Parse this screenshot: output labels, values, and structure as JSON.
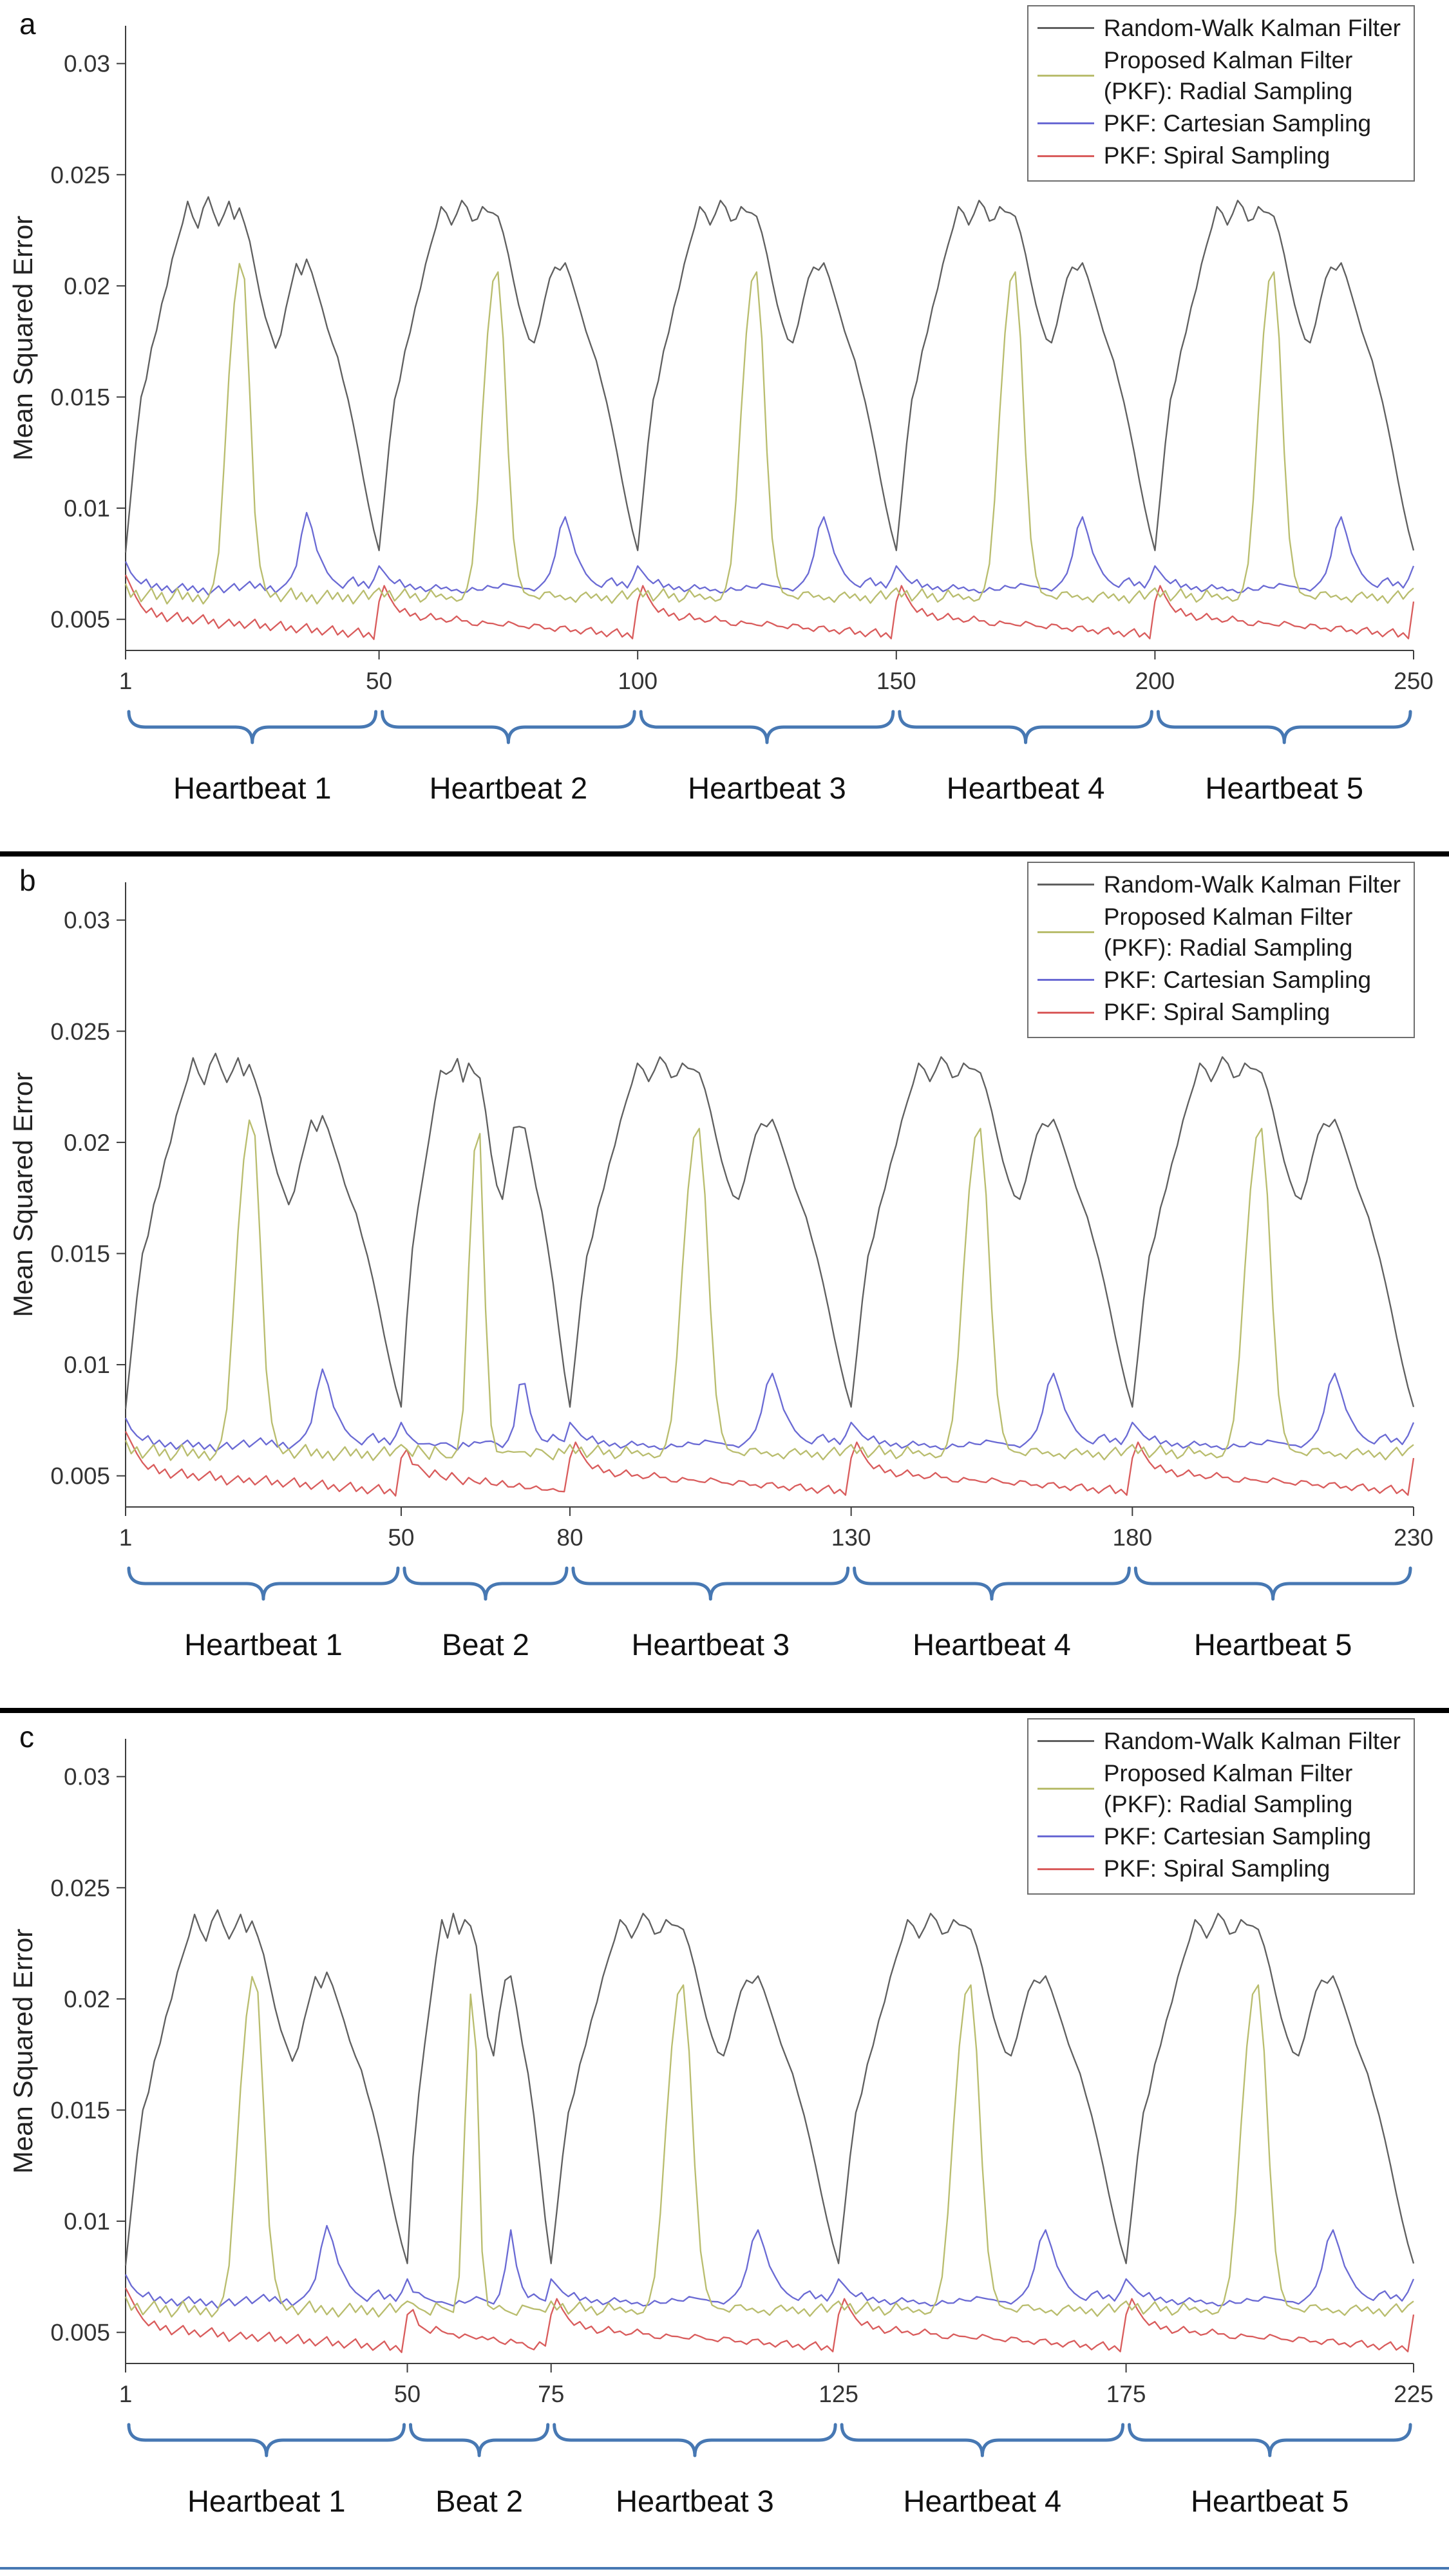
{
  "figure": {
    "background": "#ffffff",
    "separator_color": "#000000",
    "brace_color": "#4778b3",
    "axis_color": "#3c3c3c",
    "tick_label_color": "#333333",
    "panel_letters": [
      "a",
      "b",
      "c"
    ],
    "ylabel": "Mean Squared Error",
    "legend": [
      {
        "label": "Random-Walk Kalman Filter",
        "series": "random_walk"
      },
      {
        "label": "Proposed Kalman Filter (PKF): Radial Sampling",
        "lines": [
          "Proposed Kalman Filter",
          "(PKF): Radial Sampling"
        ],
        "series": "radial"
      },
      {
        "label": "PKF: Cartesian Sampling",
        "series": "cartesian"
      },
      {
        "label": "PKF: Spiral Sampling",
        "series": "spiral"
      }
    ]
  },
  "chart_data": {
    "type": "line",
    "title": "",
    "xlabel": "",
    "ylabel": "Mean Squared Error",
    "ylim": [
      0.0036,
      0.0317
    ],
    "yticks": [
      0.005,
      0.01,
      0.015,
      0.02,
      0.025,
      0.03
    ],
    "grid": false,
    "legend_position": "top-right",
    "pattern_note": "heartbeat_pattern gives MSE over one heartbeat (50 samples); each series repeats this pattern across every bracketed segment, time-scaled to the segment length.",
    "series": [
      {
        "id": "random_walk",
        "name": "Random-Walk Kalman Filter",
        "color": "#5f5f5f",
        "heartbeat_pattern": [
          0.008,
          0.0105,
          0.013,
          0.015,
          0.0158,
          0.0172,
          0.018,
          0.0192,
          0.02,
          0.0212,
          0.022,
          0.0228,
          0.0238,
          0.0231,
          0.0226,
          0.0235,
          0.024,
          0.0233,
          0.0227,
          0.0232,
          0.0238,
          0.023,
          0.0235,
          0.0228,
          0.022,
          0.0208,
          0.0196,
          0.0186,
          0.0179,
          0.0172,
          0.0178,
          0.019,
          0.02,
          0.021,
          0.0205,
          0.0212,
          0.0206,
          0.0198,
          0.019,
          0.0181,
          0.0174,
          0.0168,
          0.0158,
          0.0149,
          0.0138,
          0.0126,
          0.0113,
          0.0101,
          0.009,
          0.0081
        ]
      },
      {
        "id": "radial",
        "name": "Proposed Kalman Filter (PKF): Radial Sampling",
        "color": "#b9bd6e",
        "heartbeat_pattern": [
          0.0066,
          0.006,
          0.0063,
          0.0058,
          0.0061,
          0.0064,
          0.0059,
          0.0062,
          0.0057,
          0.006,
          0.0064,
          0.0059,
          0.0062,
          0.0058,
          0.0061,
          0.0057,
          0.006,
          0.0066,
          0.008,
          0.0118,
          0.016,
          0.0192,
          0.021,
          0.0203,
          0.0152,
          0.0098,
          0.0074,
          0.0064,
          0.006,
          0.0062,
          0.0058,
          0.0061,
          0.0064,
          0.0059,
          0.0062,
          0.0058,
          0.0061,
          0.0057,
          0.006,
          0.0063,
          0.0059,
          0.0062,
          0.0058,
          0.0061,
          0.0057,
          0.006,
          0.0063,
          0.0059,
          0.0062,
          0.0064
        ]
      },
      {
        "id": "cartesian",
        "name": "PKF: Cartesian Sampling",
        "color": "#6a6ad4",
        "heartbeat_pattern": [
          0.0076,
          0.0071,
          0.0068,
          0.0066,
          0.0068,
          0.0064,
          0.0066,
          0.0063,
          0.0065,
          0.0062,
          0.0064,
          0.0066,
          0.0063,
          0.0065,
          0.0062,
          0.0064,
          0.0061,
          0.0063,
          0.0065,
          0.0062,
          0.0064,
          0.0066,
          0.0063,
          0.0065,
          0.0067,
          0.0064,
          0.0066,
          0.0063,
          0.0065,
          0.0062,
          0.0064,
          0.0066,
          0.0069,
          0.0074,
          0.0088,
          0.0098,
          0.0091,
          0.0081,
          0.0076,
          0.0071,
          0.0068,
          0.0066,
          0.0064,
          0.0067,
          0.0069,
          0.0065,
          0.0067,
          0.0064,
          0.0068,
          0.0074
        ]
      },
      {
        "id": "spiral",
        "name": "PKF: Spiral Sampling",
        "color": "#d95c5c",
        "heartbeat_pattern": [
          0.007,
          0.0065,
          0.006,
          0.0056,
          0.0053,
          0.0055,
          0.0051,
          0.0053,
          0.0049,
          0.0051,
          0.0053,
          0.0049,
          0.0051,
          0.0048,
          0.005,
          0.0052,
          0.0048,
          0.005,
          0.0046,
          0.0048,
          0.005,
          0.0047,
          0.0049,
          0.0046,
          0.0048,
          0.005,
          0.0046,
          0.0048,
          0.0045,
          0.0047,
          0.0049,
          0.0045,
          0.0047,
          0.0044,
          0.0046,
          0.0048,
          0.0044,
          0.0046,
          0.0043,
          0.0045,
          0.0047,
          0.0043,
          0.0045,
          0.0042,
          0.0044,
          0.0046,
          0.0042,
          0.0044,
          0.0041,
          0.0058
        ]
      }
    ],
    "panels": [
      {
        "id": "a",
        "letter": "a",
        "xlim": [
          1,
          250
        ],
        "xticks": [
          1,
          50,
          100,
          150,
          200,
          250
        ],
        "segments": [
          {
            "label": "Heartbeat 1",
            "range": [
              1,
              50
            ]
          },
          {
            "label": "Heartbeat 2",
            "range": [
              50,
              100
            ]
          },
          {
            "label": "Heartbeat 3",
            "range": [
              100,
              150
            ]
          },
          {
            "label": "Heartbeat 4",
            "range": [
              150,
              200
            ]
          },
          {
            "label": "Heartbeat 5",
            "range": [
              200,
              250
            ]
          }
        ]
      },
      {
        "id": "b",
        "letter": "b",
        "xlim": [
          1,
          230
        ],
        "xticks": [
          1,
          50,
          80,
          130,
          180,
          230
        ],
        "segments": [
          {
            "label": "Heartbeat 1",
            "range": [
              1,
              50
            ]
          },
          {
            "label": "Beat 2",
            "range": [
              50,
              80
            ]
          },
          {
            "label": "Heartbeat 3",
            "range": [
              80,
              130
            ]
          },
          {
            "label": "Heartbeat 4",
            "range": [
              130,
              180
            ]
          },
          {
            "label": "Heartbeat 5",
            "range": [
              180,
              230
            ]
          }
        ]
      },
      {
        "id": "c",
        "letter": "c",
        "xlim": [
          1,
          225
        ],
        "xticks": [
          1,
          50,
          75,
          125,
          175,
          225
        ],
        "segments": [
          {
            "label": "Heartbeat 1",
            "range": [
              1,
              50
            ]
          },
          {
            "label": "Beat 2",
            "range": [
              50,
              75
            ]
          },
          {
            "label": "Heartbeat 3",
            "range": [
              75,
              125
            ]
          },
          {
            "label": "Heartbeat 4",
            "range": [
              125,
              175
            ]
          },
          {
            "label": "Heartbeat 5",
            "range": [
              175,
              225
            ]
          }
        ]
      }
    ]
  }
}
